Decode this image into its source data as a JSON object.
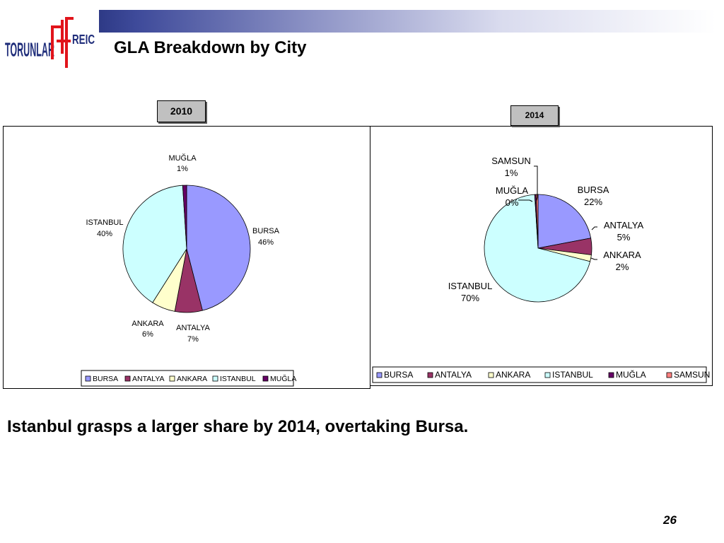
{
  "header": {
    "title": "GLA Breakdown by City",
    "logo": {
      "left_text": "TORUNLAR",
      "right_text": "REIC",
      "color": "#1f2d7a",
      "mark_color": "#e1141b"
    },
    "bar_colors": [
      "#2e3a86",
      "#ffffff"
    ]
  },
  "caption": "Istanbul grasps a larger share by 2014, overtaking Bursa.",
  "page_number": "26",
  "colors": {
    "BURSA": "#9999ff",
    "ANTALYA": "#993366",
    "ANKARA": "#ffffcc",
    "ISTANBUL": "#ccffff",
    "MUĞLA": "#660066",
    "SAMSUN": "#ff8080"
  },
  "chart_data": [
    {
      "type": "pie",
      "title": "2010",
      "categories": [
        "BURSA",
        "ANTALYA",
        "ANKARA",
        "ISTANBUL",
        "MUĞLA"
      ],
      "values": [
        46,
        7,
        6,
        40,
        1
      ],
      "labels": [
        "46%",
        "7%",
        "6%",
        "40%",
        "1%"
      ],
      "legend": [
        "BURSA",
        "ANTALYA",
        "ANKARA",
        "ISTANBUL",
        "MUĞLA"
      ],
      "legend_position": "bottom"
    },
    {
      "type": "pie",
      "title": "2014",
      "categories": [
        "BURSA",
        "ANTALYA",
        "ANKARA",
        "ISTANBUL",
        "MUĞLA",
        "SAMSUN"
      ],
      "values": [
        22,
        5,
        2,
        70,
        0.4,
        0.6
      ],
      "labels": [
        "22%",
        "5%",
        "2%",
        "70%",
        "0%",
        "1%"
      ],
      "legend": [
        "BURSA",
        "ANTALYA",
        "ANKARA",
        "ISTANBUL",
        "MUĞLA",
        "SAMSUN"
      ],
      "legend_position": "bottom"
    }
  ]
}
